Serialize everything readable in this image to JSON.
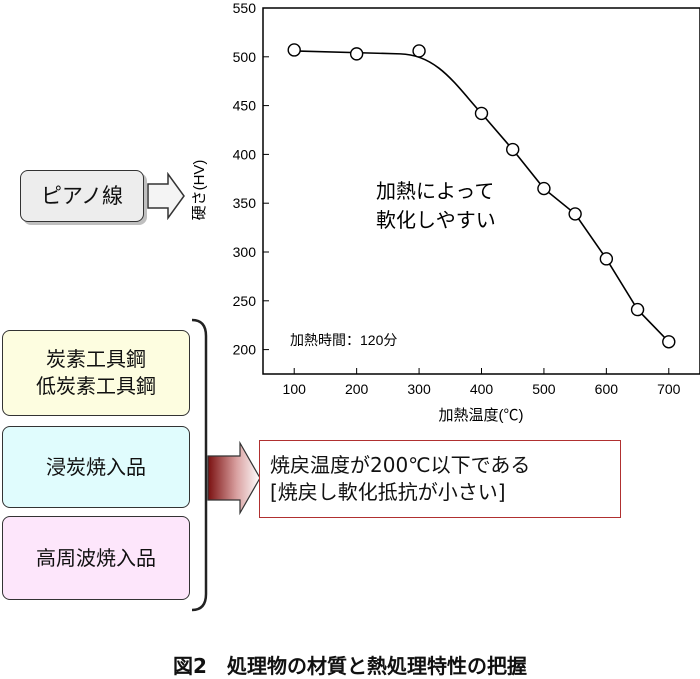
{
  "diagram": {
    "left_items": {
      "piano_wire": "ピアノ線",
      "carbon_steels": [
        "炭素工具鋼",
        "低炭素工具鋼"
      ],
      "carburized": "浸炭焼入品",
      "induction": "高周波焼入品"
    },
    "result_lines": [
      "焼戻温度が200℃以下である",
      "[焼戻し軟化抵抗が小さい]"
    ],
    "caption": "図2　処理物の材質と熱処理特性の把握",
    "colors": {
      "piano_fill": "#ededed",
      "carbon_fill": "#fdfde0",
      "carburized_fill": "#e0fcfd",
      "induction_fill": "#fde6fb",
      "result_border": "#b03030",
      "gradient_arrow": "#7a1010"
    }
  },
  "chart_data": {
    "type": "line",
    "xlabel": "加熱温度(℃)",
    "ylabel": "硬さ(HV)",
    "xlim": [
      50,
      750
    ],
    "ylim": [
      175,
      550
    ],
    "x_ticks": [
      "100",
      "200",
      "300",
      "400",
      "500",
      "600",
      "700"
    ],
    "y_ticks": [
      "200",
      "250",
      "300",
      "350",
      "400",
      "450",
      "500",
      "550"
    ],
    "series": [
      {
        "markers": "open-circle",
        "x": [
          100,
          200,
          300,
          400,
          450,
          500,
          550,
          600,
          650,
          700
        ],
        "y": [
          507,
          503,
          506,
          442,
          405,
          365,
          339,
          293,
          241,
          208
        ]
      }
    ],
    "annotations": [
      "加熱によって",
      "軟化しやすい",
      "加熱時間：120分"
    ],
    "grid": false
  }
}
